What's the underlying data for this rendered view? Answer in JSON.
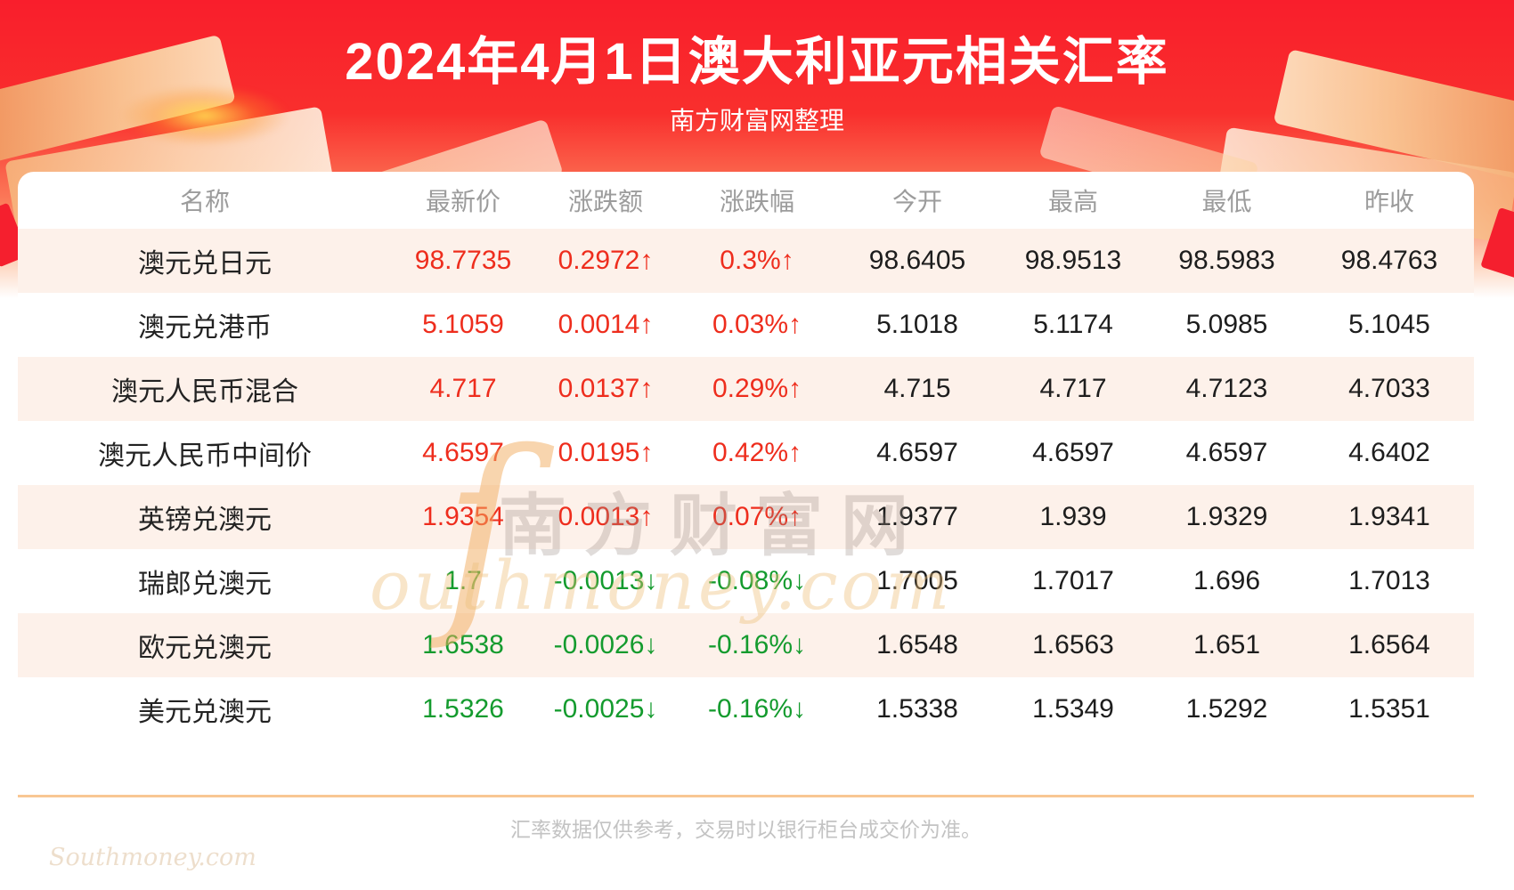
{
  "header": {
    "title": "2024年4月1日澳大利亚元相关汇率",
    "subtitle": "南方财富网整理"
  },
  "chart_data": {
    "type": "table",
    "title": "2024年4月1日澳大利亚元相关汇率",
    "columns": [
      "名称",
      "最新价",
      "涨跌额",
      "涨跌幅",
      "今开",
      "最高",
      "最低",
      "昨收"
    ],
    "rows": [
      {
        "name": "澳元兑日元",
        "latest": "98.7735",
        "change": "0.2972↑",
        "change_pct": "0.3%↑",
        "open": "98.6405",
        "high": "98.9513",
        "low": "98.5983",
        "prev_close": "98.4763",
        "direction": "up"
      },
      {
        "name": "澳元兑港币",
        "latest": "5.1059",
        "change": "0.0014↑",
        "change_pct": "0.03%↑",
        "open": "5.1018",
        "high": "5.1174",
        "low": "5.0985",
        "prev_close": "5.1045",
        "direction": "up"
      },
      {
        "name": "澳元人民币混合",
        "latest": "4.717",
        "change": "0.0137↑",
        "change_pct": "0.29%↑",
        "open": "4.715",
        "high": "4.717",
        "low": "4.7123",
        "prev_close": "4.7033",
        "direction": "up"
      },
      {
        "name": "澳元人民币中间价",
        "latest": "4.6597",
        "change": "0.0195↑",
        "change_pct": "0.42%↑",
        "open": "4.6597",
        "high": "4.6597",
        "low": "4.6597",
        "prev_close": "4.6402",
        "direction": "up"
      },
      {
        "name": "英镑兑澳元",
        "latest": "1.9354",
        "change": "0.0013↑",
        "change_pct": "0.07%↑",
        "open": "1.9377",
        "high": "1.939",
        "low": "1.9329",
        "prev_close": "1.9341",
        "direction": "up"
      },
      {
        "name": "瑞郎兑澳元",
        "latest": "1.7",
        "change": "-0.0013↓",
        "change_pct": "-0.08%↓",
        "open": "1.7005",
        "high": "1.7017",
        "low": "1.696",
        "prev_close": "1.7013",
        "direction": "down"
      },
      {
        "name": "欧元兑澳元",
        "latest": "1.6538",
        "change": "-0.0026↓",
        "change_pct": "-0.16%↓",
        "open": "1.6548",
        "high": "1.6563",
        "low": "1.651",
        "prev_close": "1.6564",
        "direction": "down"
      },
      {
        "name": "美元兑澳元",
        "latest": "1.5326",
        "change": "-0.0025↓",
        "change_pct": "-0.16%↓",
        "open": "1.5338",
        "high": "1.5349",
        "low": "1.5292",
        "prev_close": "1.5351",
        "direction": "down"
      }
    ]
  },
  "watermark": {
    "cn": "南方财富网",
    "s_swoosh": "ſ",
    "en": "outhmoney.com",
    "corner": "Southmoney.com"
  },
  "footer": {
    "note": "汇率数据仅供参考，交易时以银行柜台成交价为准。"
  },
  "colors": {
    "up": "#ee2d1d",
    "down": "#149b2e",
    "banner_red": "#f91e2c",
    "row_alt": "#fdf1ea",
    "text_dark": "#1d1d1d",
    "header_gray": "#9c9c9c"
  }
}
